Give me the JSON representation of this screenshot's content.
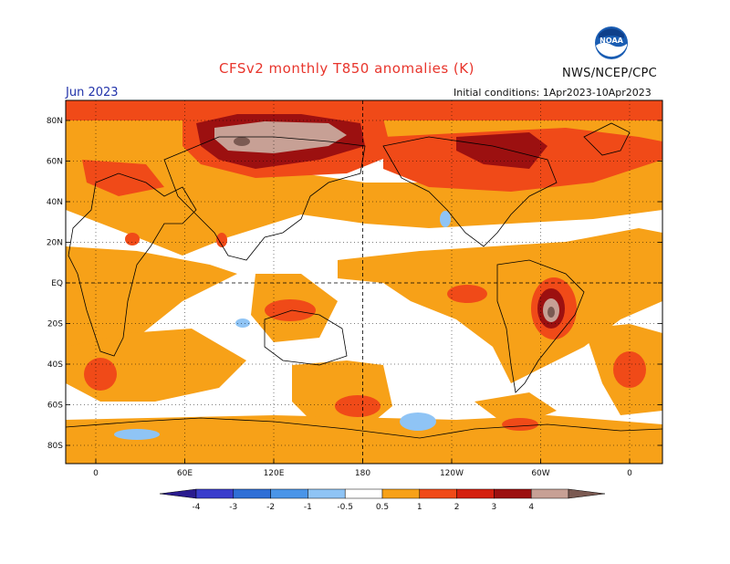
{
  "title": "CFSv2 monthly T850 anomalies (K)",
  "agency": "NWS/NCEP/CPC",
  "logo_text": "NOAA",
  "month": "Jun 2023",
  "initial_conditions": "Initial conditions: 1Apr2023-10Apr2023",
  "lat_labels": [
    "80N",
    "60N",
    "40N",
    "20N",
    "EQ",
    "20S",
    "40S",
    "60S",
    "80S"
  ],
  "lon_labels": [
    "0",
    "60E",
    "120E",
    "180",
    "120W",
    "60W",
    "0"
  ],
  "colorbar": {
    "levels": [
      "-4",
      "-3",
      "-2",
      "-1",
      "-0.5",
      "0.5",
      "1",
      "2",
      "3",
      "4"
    ],
    "colors": [
      "#2a1b8f",
      "#3a3dcc",
      "#2f6fd6",
      "#4a95e8",
      "#8fc4f5",
      "#ffffff",
      "#f7a118",
      "#f04a18",
      "#d4200f",
      "#9c1010",
      "#c7a095",
      "#7b5a52"
    ]
  }
}
